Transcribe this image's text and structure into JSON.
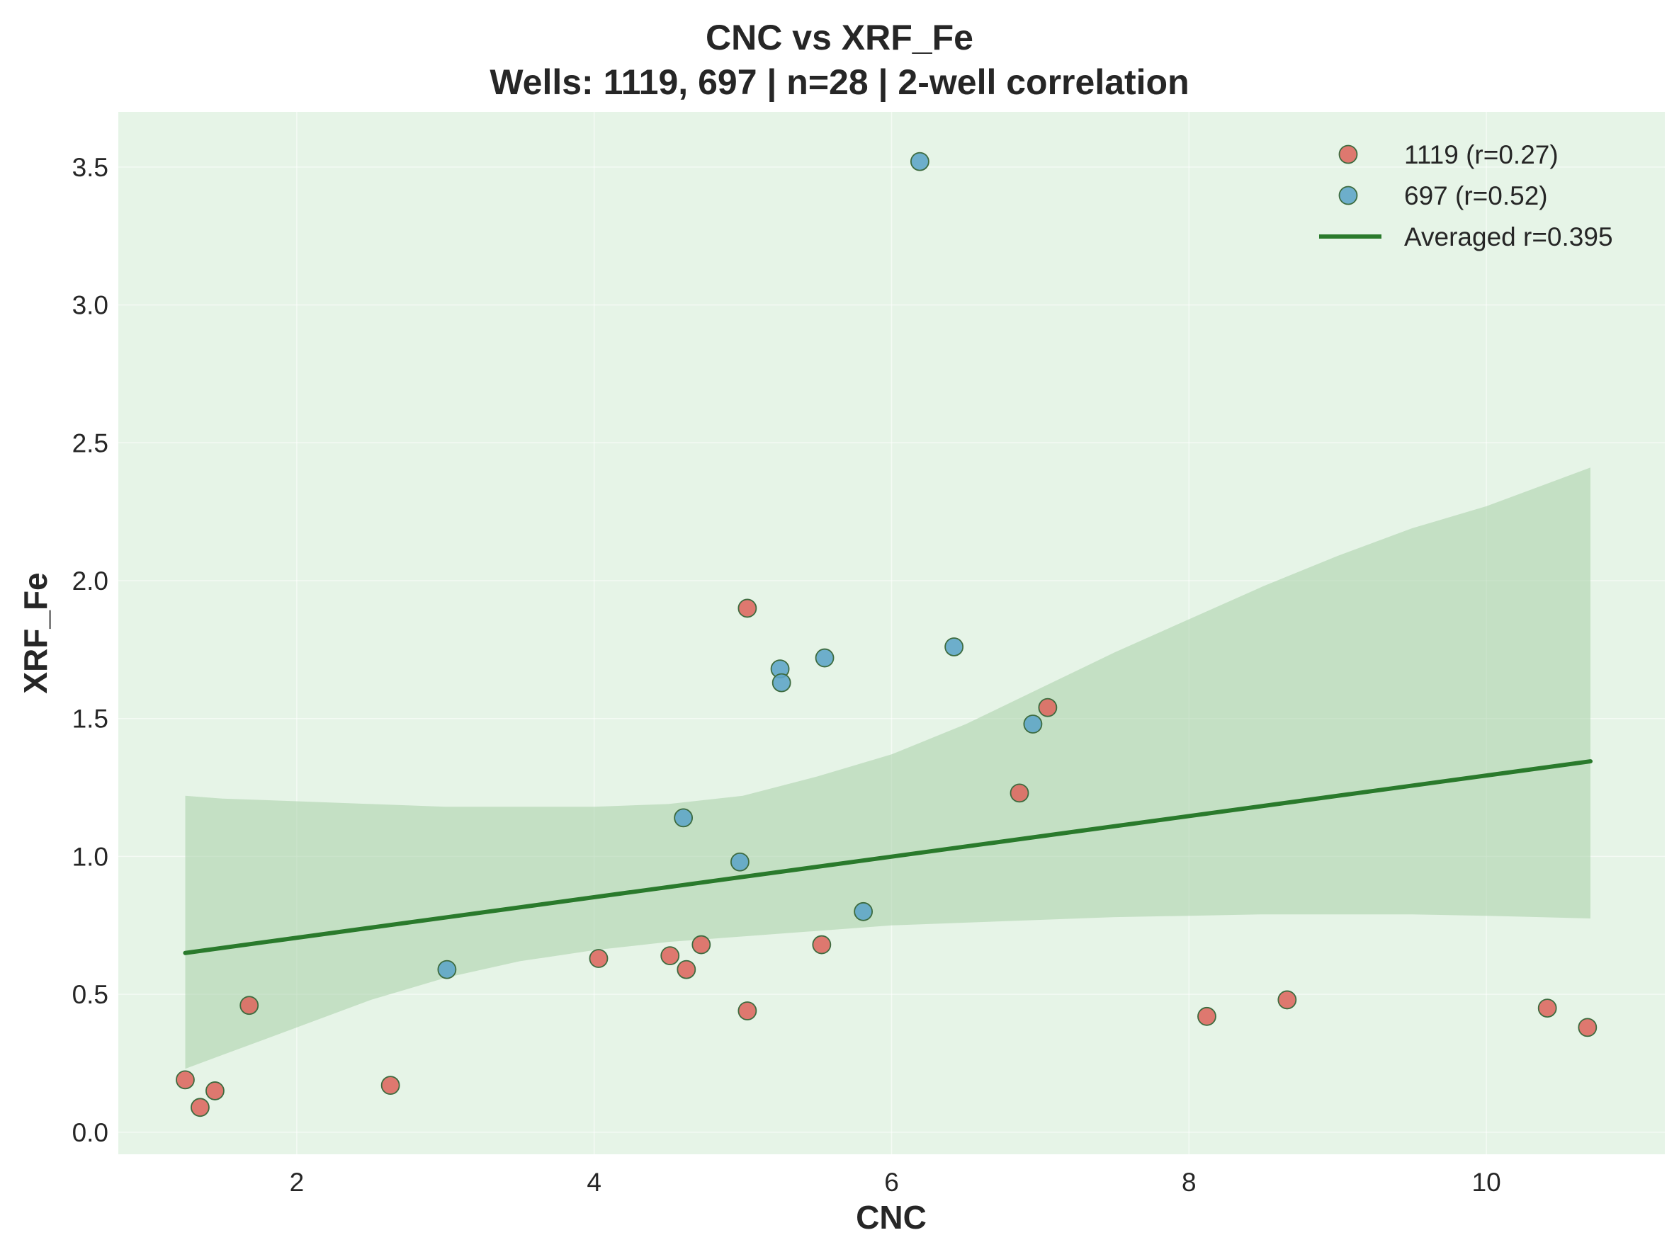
{
  "chart_data": {
    "type": "scatter",
    "title": "CNC vs XRF_Fe",
    "subtitle": "Wells: 1119, 697 | n=28 | 2-well correlation",
    "xlabel": "CNC",
    "ylabel": "XRF_Fe",
    "xlim": [
      0.8,
      11.2
    ],
    "ylim": [
      -0.08,
      3.7
    ],
    "xticks": [
      "2",
      "4",
      "6",
      "8",
      "10"
    ],
    "yticks": [
      "0.0",
      "0.5",
      "1.0",
      "1.5",
      "2.0",
      "2.5",
      "3.0",
      "3.5"
    ],
    "xtick_values": [
      2,
      4,
      6,
      8,
      10
    ],
    "ytick_values": [
      0.0,
      0.5,
      1.0,
      1.5,
      2.0,
      2.5,
      3.0,
      3.5
    ],
    "grid": true,
    "legend_position": "top-right",
    "background_color": "#e6f4e7",
    "series": [
      {
        "name": "1119 (r=0.27)",
        "color": "#dd6a62",
        "points": [
          {
            "x": 1.25,
            "y": 0.19
          },
          {
            "x": 1.35,
            "y": 0.09
          },
          {
            "x": 1.45,
            "y": 0.15
          },
          {
            "x": 1.68,
            "y": 0.46
          },
          {
            "x": 2.63,
            "y": 0.17
          },
          {
            "x": 4.03,
            "y": 0.63
          },
          {
            "x": 4.51,
            "y": 0.64
          },
          {
            "x": 4.62,
            "y": 0.59
          },
          {
            "x": 4.72,
            "y": 0.68
          },
          {
            "x": 5.03,
            "y": 1.9
          },
          {
            "x": 5.03,
            "y": 0.44
          },
          {
            "x": 5.53,
            "y": 0.68
          },
          {
            "x": 6.86,
            "y": 1.23
          },
          {
            "x": 7.05,
            "y": 1.54
          },
          {
            "x": 8.12,
            "y": 0.42
          },
          {
            "x": 8.66,
            "y": 0.48
          },
          {
            "x": 10.41,
            "y": 0.45
          },
          {
            "x": 10.68,
            "y": 0.38
          }
        ]
      },
      {
        "name": "697 (r=0.52)",
        "color": "#5fa6c8",
        "points": [
          {
            "x": 3.01,
            "y": 0.59
          },
          {
            "x": 4.6,
            "y": 1.14
          },
          {
            "x": 4.98,
            "y": 0.98
          },
          {
            "x": 5.25,
            "y": 1.68
          },
          {
            "x": 5.26,
            "y": 1.63
          },
          {
            "x": 5.55,
            "y": 1.72
          },
          {
            "x": 5.81,
            "y": 0.8
          },
          {
            "x": 6.19,
            "y": 3.52
          },
          {
            "x": 6.42,
            "y": 1.76
          },
          {
            "x": 6.95,
            "y": 1.48
          }
        ]
      }
    ],
    "fit_line": {
      "name": "Averaged r=0.395",
      "color": "#2a7a2c",
      "x": [
        1.25,
        10.7
      ],
      "y": [
        0.65,
        1.345
      ]
    },
    "confidence_band": {
      "color": "#a7d0a8",
      "x": [
        1.25,
        1.5,
        2.0,
        2.5,
        3.0,
        3.5,
        4.0,
        4.5,
        5.0,
        5.5,
        6.0,
        6.5,
        7.0,
        7.5,
        8.0,
        8.5,
        9.0,
        9.5,
        10.0,
        10.7
      ],
      "upper": [
        1.22,
        1.21,
        1.2,
        1.19,
        1.18,
        1.18,
        1.18,
        1.19,
        1.22,
        1.29,
        1.37,
        1.48,
        1.61,
        1.74,
        1.86,
        1.98,
        2.09,
        2.19,
        2.27,
        2.41
      ],
      "lower": [
        0.23,
        0.28,
        0.38,
        0.48,
        0.56,
        0.62,
        0.66,
        0.69,
        0.71,
        0.73,
        0.75,
        0.76,
        0.77,
        0.78,
        0.785,
        0.79,
        0.79,
        0.79,
        0.785,
        0.775
      ]
    }
  }
}
